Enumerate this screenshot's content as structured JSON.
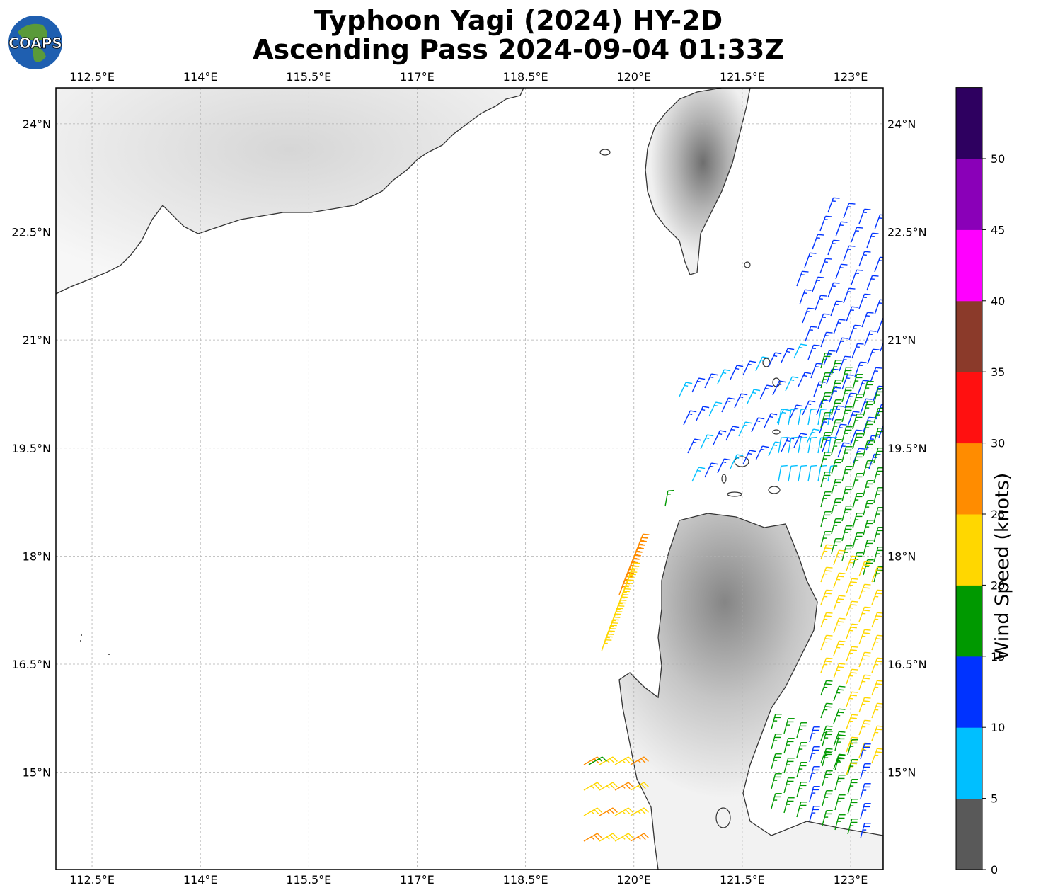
{
  "title": {
    "line1": "Typhoon Yagi (2024) HY-2D",
    "line2": "Ascending Pass 2024-09-04 01:33Z"
  },
  "logo": {
    "text": "COAPS"
  },
  "map": {
    "lon_range": [
      112.0,
      123.45
    ],
    "lat_range": [
      13.65,
      24.5
    ],
    "lon_ticks": [
      "112.5°E",
      "114°E",
      "115.5°E",
      "117°E",
      "118.5°E",
      "120°E",
      "121.5°E",
      "123°E"
    ],
    "lat_ticks": [
      "24°N",
      "22.5°N",
      "21°N",
      "19.5°N",
      "18°N",
      "16.5°N",
      "15°N"
    ],
    "lon_tick_values": [
      112.5,
      114,
      115.5,
      117,
      118.5,
      120,
      121.5,
      123
    ],
    "lat_tick_values": [
      24,
      22.5,
      21,
      19.5,
      18,
      16.5,
      15
    ],
    "gridlines": true,
    "colors": {
      "coast": "#333333",
      "grid": "#b0b0b0",
      "land": "#f2f2f2",
      "mountain": "#7a7a7a"
    }
  },
  "colorbar": {
    "label": "Wind Speed (knots)",
    "tick_labels": [
      "0",
      "5",
      "10",
      "15",
      "20",
      "25",
      "30",
      "35",
      "40",
      "45",
      "50"
    ],
    "bins": [
      {
        "min": 0,
        "max": 5,
        "color": "#595959"
      },
      {
        "min": 5,
        "max": 10,
        "color": "#00bfff"
      },
      {
        "min": 10,
        "max": 15,
        "color": "#0033ff"
      },
      {
        "min": 15,
        "max": 20,
        "color": "#009900"
      },
      {
        "min": 20,
        "max": 25,
        "color": "#ffd700"
      },
      {
        "min": 25,
        "max": 30,
        "color": "#ff8c00"
      },
      {
        "min": 30,
        "max": 35,
        "color": "#ff1010"
      },
      {
        "min": 35,
        "max": 40,
        "color": "#8b3a2a"
      },
      {
        "min": 40,
        "max": 45,
        "color": "#ff00ff"
      },
      {
        "min": 45,
        "max": 50,
        "color": "#8a00b8"
      },
      {
        "min": 50,
        "max": 55,
        "color": "#2e0060"
      }
    ]
  },
  "wind_barb_groups": [
    {
      "region": "north-east swath",
      "speed_knots": 12,
      "color": "#0033ff"
    },
    {
      "region": "central swath",
      "speed_knots": 8,
      "color": "#00bfff"
    },
    {
      "region": "eastern swath",
      "speed_knots": 17,
      "color": "#009900"
    },
    {
      "region": "east of Luzon",
      "speed_knots": 22,
      "color": "#ffd700"
    },
    {
      "region": "west of Luzon",
      "speed_knots": 27,
      "color": "#ff8c00"
    }
  ]
}
